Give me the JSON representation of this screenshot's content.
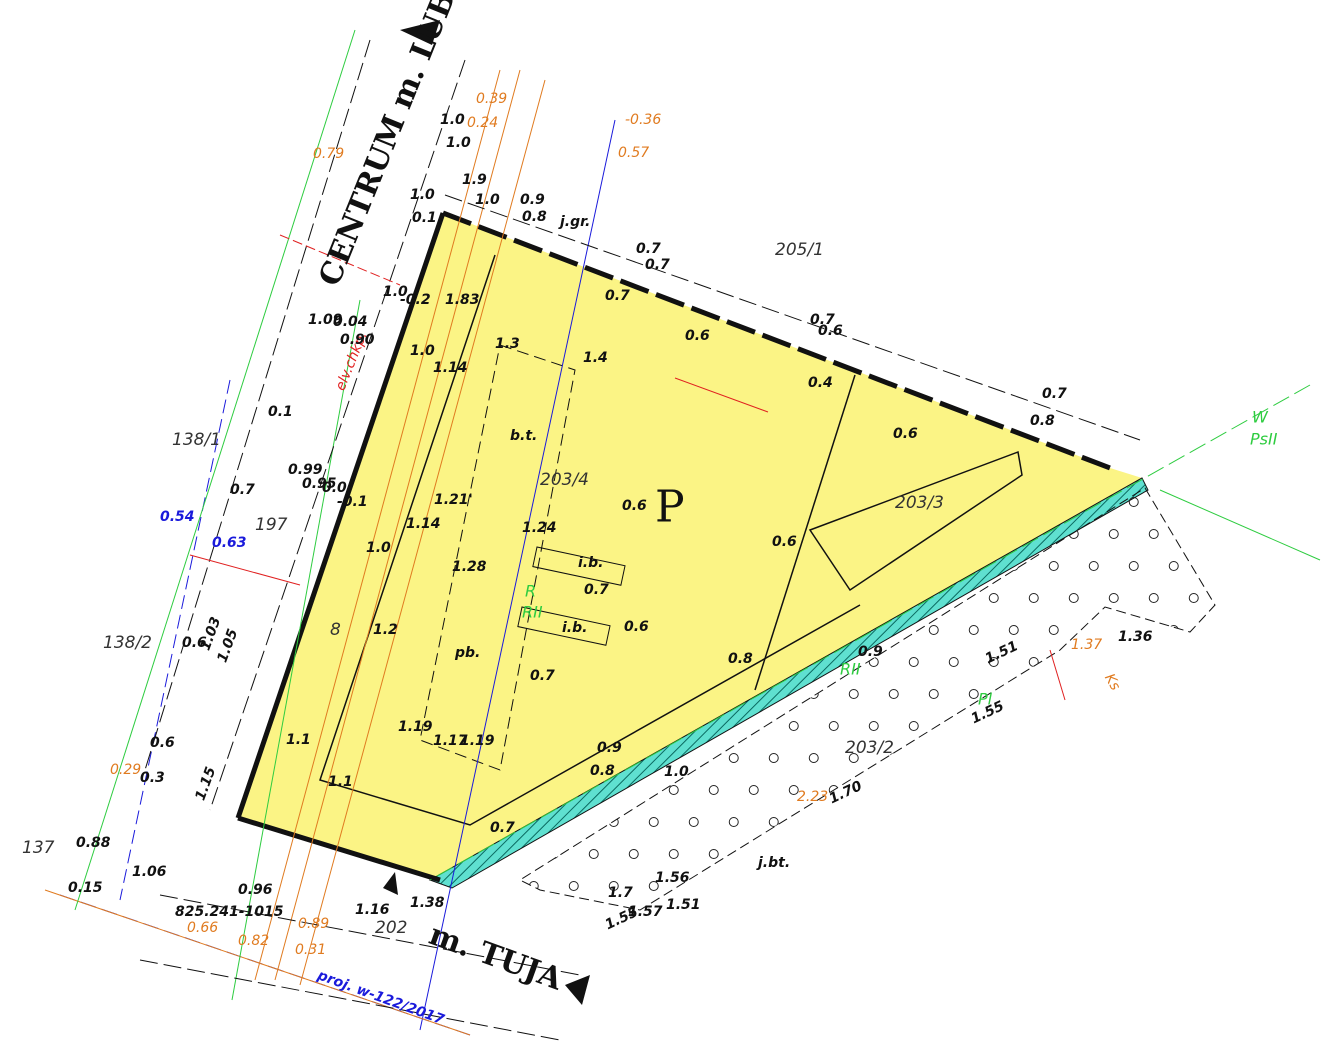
{
  "labels": [
    "205/1",
    "203/4",
    "P",
    "203/3",
    "203/2",
    "138/1",
    "138/2",
    "197",
    "137",
    "202",
    "8",
    "b.t.",
    "pb.",
    "i.b.",
    "i.b.",
    "R",
    "RII",
    "W",
    "PsII",
    "j.gr.",
    "j.bt.",
    "elv.chkp.",
    "proj. w-122/2017",
    "0.54",
    "0.63",
    "1.37",
    "Ks",
    "0.39",
    "0.24",
    "-0.36",
    "0.57",
    "0.79",
    "2.23",
    "0.89",
    "0.31",
    "0.82",
    "0.66",
    "0.29",
    "0.7",
    "0.6",
    "1.4",
    "1.3",
    "0.4",
    "0.6",
    "0.6",
    "0.6",
    "1.24",
    "1.21'",
    "1.28",
    "0.7",
    "0.6",
    "0.8",
    "0.7",
    "1.19",
    "1.17",
    "1.19",
    "0.9",
    "0.8",
    "1.0",
    "1.2",
    "1.0",
    "1.14",
    "1.0",
    "1.14",
    "1.83",
    "1.1",
    "1.1",
    "0.7",
    "1.0",
    "1.0",
    "1.9",
    "1.0",
    "0.9",
    "0.8",
    "0.7",
    "0.7",
    "0.7",
    "0.6",
    "0.7",
    "0.8",
    "0.6",
    "0.3",
    "0.88",
    "1.06",
    "0.96",
    "1.51",
    "1.55",
    "1.70",
    "1.36",
    "1.56",
    "1.51",
    "1.7",
    "1.57",
    "1.55",
    "0.9",
    "0.7",
    "0.6",
    "1.03",
    "1.05",
    "1.0",
    "0.1",
    "1.0",
    "-0.2",
    "0.90",
    "0.04",
    "1.09",
    "0.99",
    "0.95",
    "0.0",
    "-0.1",
    "1.16",
    "1.38",
    "0.1",
    "1.15",
    "0.15",
    "825.241-1015",
    "RII",
    "Pl"
  ],
  "street_names": [
    "CENTRUM m. LUBIESZEWO",
    "m. TUJA"
  ]
}
